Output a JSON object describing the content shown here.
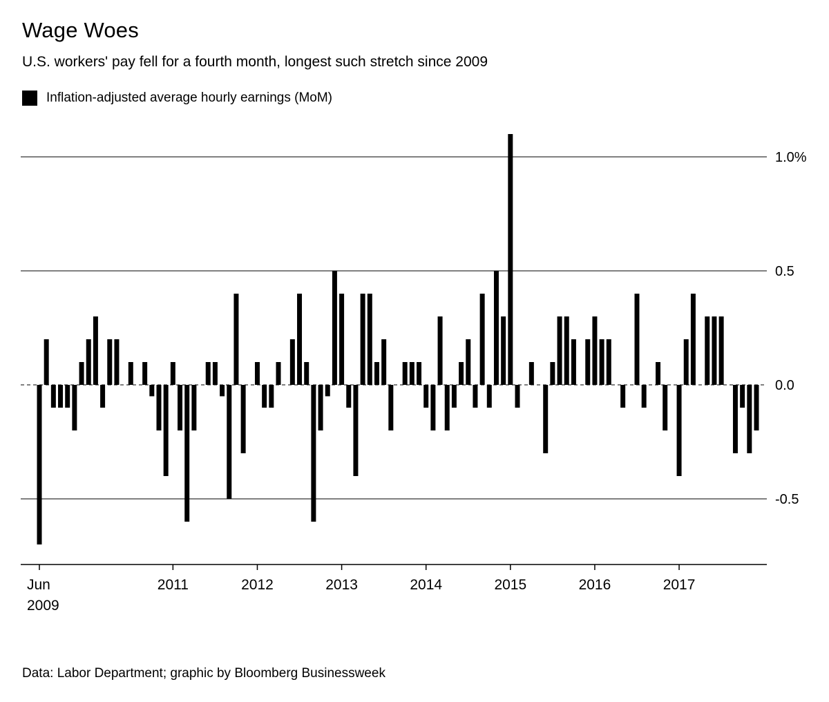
{
  "header": {
    "title": "Wage Woes",
    "subtitle": "U.S. workers' pay fell for a fourth month, longest such stretch since 2009"
  },
  "legend": {
    "label": "Inflation-adjusted average hourly earnings (MoM)",
    "swatch_color": "#000000"
  },
  "chart_data": {
    "type": "bar",
    "title": "Wage Woes",
    "subtitle": "U.S. workers' pay fell for a fourth month, longest such stretch since 2009",
    "series_name": "Inflation-adjusted average hourly earnings (MoM)",
    "unit": "%",
    "frequency": "monthly",
    "start": "2009-06",
    "end": "2017-12",
    "bar_color": "#000000",
    "grid": "horizontal",
    "zero_line_style": "dashed",
    "ylim": [
      -0.8,
      1.2
    ],
    "y_ticks": [
      1.0,
      0.5,
      0.0,
      -0.5
    ],
    "y_tick_labels": [
      "1.0%",
      "0.5",
      "0.0",
      "-0.5"
    ],
    "x_ticks": [
      {
        "index": 0,
        "label": "Jun",
        "sublabel": "2009"
      },
      {
        "index": 19,
        "label": "2011",
        "sublabel": ""
      },
      {
        "index": 31,
        "label": "2012",
        "sublabel": ""
      },
      {
        "index": 43,
        "label": "2013",
        "sublabel": ""
      },
      {
        "index": 55,
        "label": "2014",
        "sublabel": ""
      },
      {
        "index": 67,
        "label": "2015",
        "sublabel": ""
      },
      {
        "index": 79,
        "label": "2016",
        "sublabel": ""
      },
      {
        "index": 91,
        "label": "2017",
        "sublabel": ""
      }
    ],
    "values": [
      -0.7,
      0.2,
      -0.1,
      -0.1,
      -0.1,
      -0.2,
      0.1,
      0.2,
      0.3,
      -0.1,
      0.2,
      0.2,
      0.0,
      0.1,
      0.0,
      0.1,
      -0.05,
      -0.2,
      -0.4,
      0.1,
      -0.2,
      -0.6,
      -0.2,
      0.0,
      0.1,
      0.1,
      -0.05,
      -0.5,
      0.4,
      -0.3,
      0.0,
      0.1,
      -0.1,
      -0.1,
      0.1,
      0.0,
      0.2,
      0.4,
      0.1,
      -0.6,
      -0.2,
      -0.05,
      0.5,
      0.4,
      -0.1,
      -0.4,
      0.4,
      0.4,
      0.1,
      0.2,
      -0.2,
      0.0,
      0.1,
      0.1,
      0.1,
      -0.1,
      -0.2,
      0.3,
      -0.2,
      -0.1,
      0.1,
      0.2,
      -0.1,
      0.4,
      -0.1,
      0.5,
      0.3,
      1.1,
      -0.1,
      0.0,
      0.1,
      0.0,
      -0.3,
      0.1,
      0.3,
      0.3,
      0.2,
      0.0,
      0.2,
      0.3,
      0.2,
      0.2,
      0.0,
      -0.1,
      0.0,
      0.4,
      -0.1,
      0.0,
      0.1,
      -0.2,
      0.0,
      -0.4,
      0.2,
      0.4,
      0.0,
      0.3,
      0.3,
      0.3,
      0.0,
      -0.3,
      -0.1,
      -0.3,
      -0.2
    ]
  },
  "footer": {
    "source": "Data: Labor Department; graphic by Bloomberg Businessweek"
  }
}
